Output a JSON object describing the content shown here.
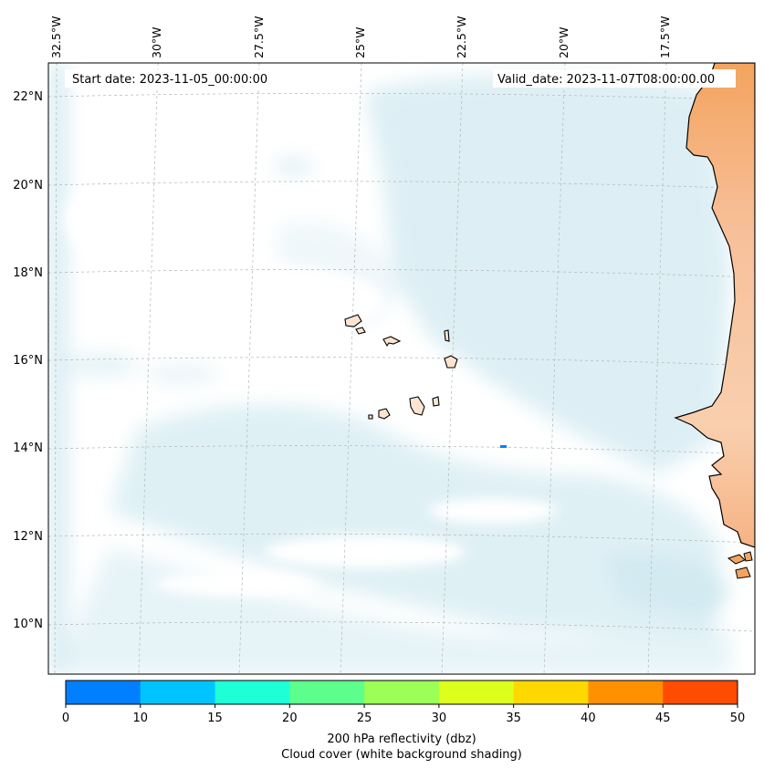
{
  "map": {
    "start_date": "Start date: 2023-11-05_00:00:00",
    "valid_date": "Valid_date: 2023-11-07T08:00:00.00",
    "lon_labels": [
      "32.5°W",
      "30°W",
      "27.5°W",
      "25°W",
      "22.5°W",
      "20°W",
      "17.5°W"
    ],
    "lat_labels": [
      "22°N",
      "20°N",
      "18°N",
      "16°N",
      "14°N",
      "12°N",
      "10°N"
    ],
    "land_color": "#f4a460",
    "cloud_color": "#add8e6",
    "coastline_color": "#000000"
  },
  "colorbar": {
    "ticks": [
      "0",
      "10",
      "15",
      "20",
      "25",
      "30",
      "35",
      "40",
      "45",
      "50"
    ],
    "colors": [
      "#0080ff",
      "#00c4ff",
      "#1effd8",
      "#5cff8c",
      "#9cff57",
      "#dcff1c",
      "#ffd800",
      "#ff9000",
      "#ff4c00"
    ],
    "label_line1": "200 hPa reflectivity (dbz)",
    "label_line2": "Cloud cover (white background shading)"
  }
}
